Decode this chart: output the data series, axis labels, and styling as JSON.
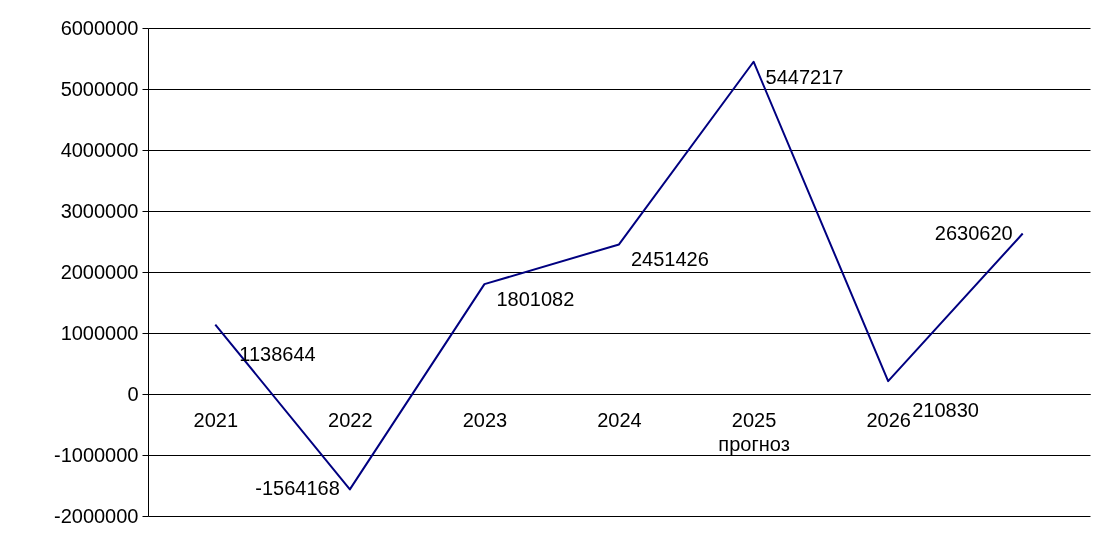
{
  "chart_data": {
    "type": "line",
    "categories": [
      "2021",
      "2022",
      "2023",
      "2024",
      "2025 прогноз",
      "2026",
      null
    ],
    "series": [
      {
        "color": "#000080",
        "values": [
          1138644,
          -1564168,
          1801082,
          2451426,
          5447217,
          210830,
          2630620
        ]
      }
    ],
    "ylim": [
      -2000000,
      6000000
    ],
    "yticks": [
      -2000000,
      -1000000,
      0,
      1000000,
      2000000,
      3000000,
      4000000,
      5000000,
      6000000
    ],
    "grid": "y",
    "data_labels": true,
    "legend": false,
    "marker": "none",
    "line_style": "solid"
  }
}
